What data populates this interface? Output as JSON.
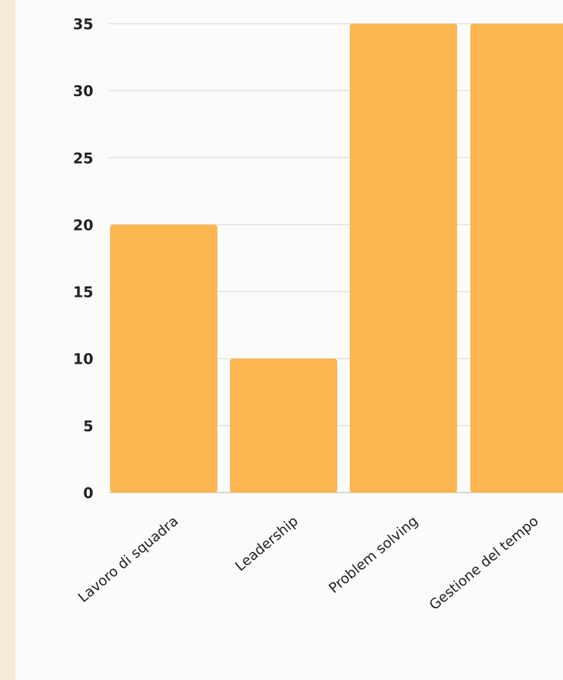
{
  "chart_data": {
    "type": "bar",
    "title": "",
    "xlabel": "",
    "ylabel": "",
    "categories": [
      "Lavoro di squadra",
      "Leadership",
      "Problem solving",
      "Gestione del tempo"
    ],
    "values": [
      20,
      10,
      35,
      35
    ],
    "ylim": [
      0,
      35
    ],
    "yticks": [
      0,
      5,
      10,
      15,
      20,
      25,
      30,
      35
    ],
    "grid": true,
    "legend": "none",
    "bar_color": "#fbb551",
    "gridline_color": "#e1e1e1",
    "background_color": "#fbfbfb",
    "outer_background_color": "#f6ead8"
  }
}
